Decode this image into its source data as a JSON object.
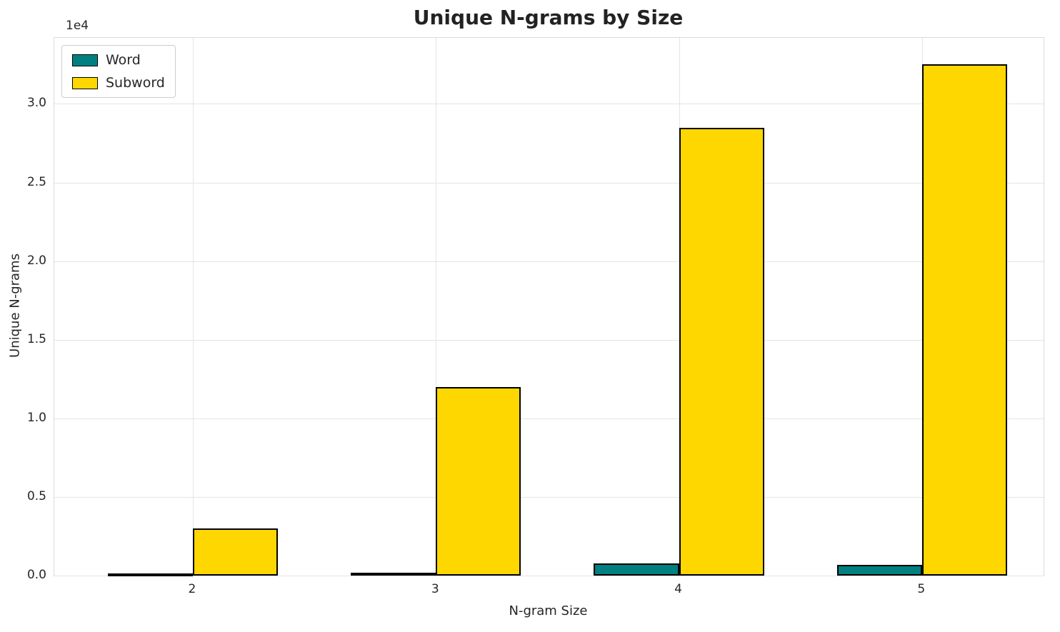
{
  "chart_data": {
    "type": "bar",
    "title": "Unique N-grams by Size",
    "xlabel": "N-gram Size",
    "ylabel": "Unique N-grams",
    "offset_text": "1e4",
    "categories": [
      "2",
      "3",
      "4",
      "5"
    ],
    "series": [
      {
        "name": "Word",
        "color": "#008080",
        "values": [
          120,
          200,
          750,
          700
        ]
      },
      {
        "name": "Subword",
        "color": "#FFD700",
        "values": [
          3000,
          12000,
          28500,
          32500
        ]
      }
    ],
    "ylim": [
      0,
      34200
    ],
    "yticks": [
      0,
      5000,
      10000,
      15000,
      20000,
      25000,
      30000
    ],
    "ytick_labels": [
      "0.0",
      "0.5",
      "1.0",
      "1.5",
      "2.0",
      "2.5",
      "3.0"
    ],
    "grid": true,
    "legend_position": "upper left",
    "bar_edge_color": "#000000",
    "bar_width": 0.35
  }
}
